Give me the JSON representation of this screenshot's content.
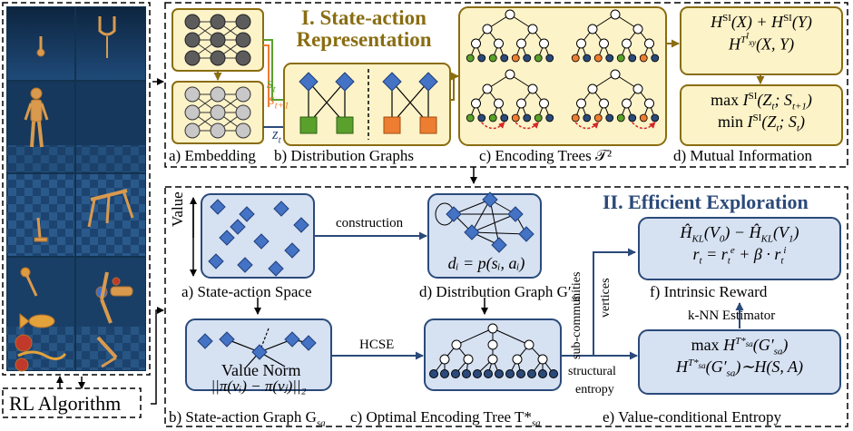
{
  "colors": {
    "gold_stroke": "#8a6d12",
    "gold_fill": "#fdf3c8",
    "blue_stroke": "#2b4a7a",
    "blue_fill": "#d6e1f2",
    "node_dark": "#5c5c5c",
    "node_light": "#c8c8c8",
    "diamond": "#4472c4",
    "green_square": "#5aa02c",
    "orange_square": "#ed7d31",
    "red_dash": "#d62728"
  },
  "left_panel": {
    "bottom_label": "RL Algorithm"
  },
  "section1": {
    "title_line1": "I. State-action",
    "title_line2": "Representation",
    "vec_labels": {
      "s_t": "s",
      "s_t_sub": "t",
      "s_t1": "s",
      "s_t1_sub": "t+1",
      "z_t": "z",
      "z_t_sub": "t"
    },
    "captions": {
      "a": "a) Embedding",
      "b": "b) Distribution Graphs",
      "c": "c) Encoding Trees 𝒯²",
      "d": "d) Mutual Information"
    },
    "mi_box_top": {
      "line1": "H^SI(X) + H^SI(Y)",
      "line2": "H^{T^I_xy}(X, Y)"
    },
    "mi_box_bottom": {
      "line1": "max I^SI(Z_t; S_{t+1})",
      "line2": "min I^SI(Z_t; S_t)"
    }
  },
  "section2": {
    "title": "II. Efficient Exploration",
    "value_axis_label": "Value",
    "arrow_labels": {
      "construction": "construction",
      "hcse": "HCSE",
      "knn": "k-NN Estimator",
      "sub_communities": "sub-communities",
      "vertices": "vertices",
      "structural": "structural",
      "entropy": "entropy"
    },
    "captions": {
      "a": "a) State-action Space",
      "b": "b) State-action Graph G",
      "b_sub": "sa",
      "c": "c) Optimal Encoding Tree T*",
      "c_sub": "sa",
      "d": "d) Distribution Graph G′",
      "d_sub": "sa",
      "e": "e) Value-conditional Entropy",
      "f": "f) Intrinsic Reward"
    },
    "dist_formula": "dᵢ = p(sᵢ, aᵢ)",
    "value_norm_label": "Value Norm",
    "value_norm_formula": "||π(vᵢ) − π(vⱼ)||₂",
    "intrinsic_box": {
      "line1": "Ĥ_KL(V₀) − Ĥ_KL(V₁)",
      "line2": "r_t = r_t^e + β · r_t^i"
    },
    "entropy_box": {
      "line1": "max H^{T*_sa}(G′_sa)",
      "line2": "H^{T*_sa}(G′_sa) ~ H(S, A)"
    }
  }
}
